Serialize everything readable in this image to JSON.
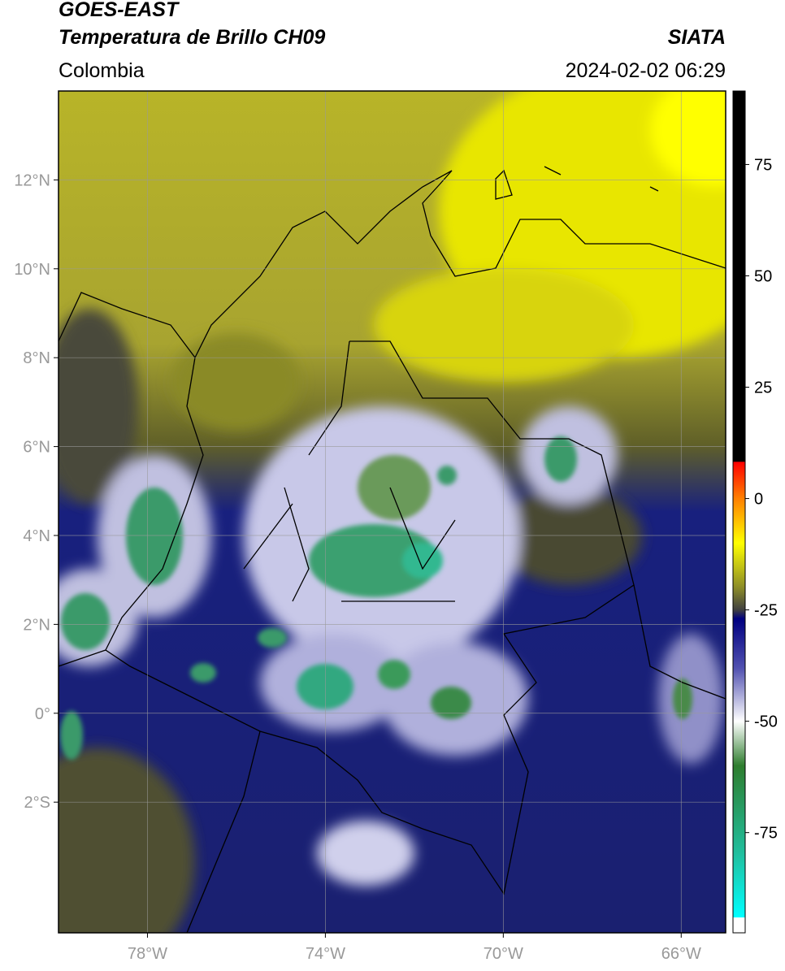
{
  "header": {
    "title": "GOES-EAST",
    "subtitle": "Temperatura de Brillo CH09",
    "source": "SIATA",
    "region": "Colombia",
    "datetime": "2024-02-02 06:29"
  },
  "map": {
    "xlim": [
      -80,
      -65
    ],
    "ylim": [
      -4.94,
      14
    ],
    "xticks": [
      {
        "value": -78,
        "label": "78°W"
      },
      {
        "value": -74,
        "label": "74°W"
      },
      {
        "value": -70,
        "label": "70°W"
      },
      {
        "value": -66,
        "label": "66°W"
      }
    ],
    "yticks": [
      {
        "value": 12,
        "label": "12°N"
      },
      {
        "value": 10,
        "label": "10°N"
      },
      {
        "value": 8,
        "label": "8°N"
      },
      {
        "value": 6,
        "label": "6°N"
      },
      {
        "value": 4,
        "label": "4°N"
      },
      {
        "value": 2,
        "label": "2°N"
      },
      {
        "value": 0,
        "label": "0°"
      },
      {
        "value": -2,
        "label": "2°S"
      }
    ],
    "grid": true
  },
  "colorbar": {
    "lim": [
      -97.5,
      91.5
    ],
    "ticks": [
      75,
      50,
      25,
      0,
      -25,
      -50,
      -75
    ],
    "stops": [
      {
        "value": 91.5,
        "color": "#000000"
      },
      {
        "value": 8.3,
        "color": "#000000"
      },
      {
        "value": 8.2,
        "color": "#ff0000"
      },
      {
        "value": 0,
        "color": "#ff8000"
      },
      {
        "value": -10,
        "color": "#ffff00"
      },
      {
        "value": -20,
        "color": "#8c8c28"
      },
      {
        "value": -25,
        "color": "#404040"
      },
      {
        "value": -27,
        "color": "#000080"
      },
      {
        "value": -38,
        "color": "#5050b0"
      },
      {
        "value": -50,
        "color": "#ffffff"
      },
      {
        "value": -60,
        "color": "#2e7d2e"
      },
      {
        "value": -80,
        "color": "#20c0a0"
      },
      {
        "value": -94,
        "color": "#00ffff"
      },
      {
        "value": -94.1,
        "color": "#ffffff"
      },
      {
        "value": -97.5,
        "color": "#ffffff"
      }
    ]
  }
}
